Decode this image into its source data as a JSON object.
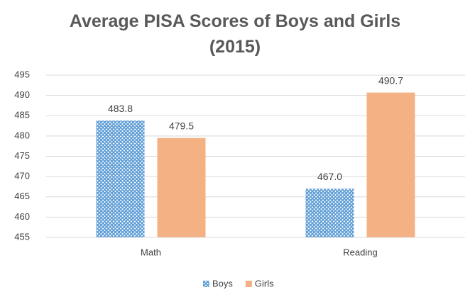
{
  "chart_data": {
    "type": "bar",
    "title": "Average PISA Scores of Boys and Girls (2015)",
    "categories": [
      "Math",
      "Reading"
    ],
    "series": [
      {
        "name": "Boys",
        "color": "#5b9bd5",
        "values": [
          483.8,
          467.0
        ],
        "value_labels": [
          "483.8",
          "467.0"
        ]
      },
      {
        "name": "Girls",
        "color": "#f4b183",
        "values": [
          479.5,
          490.7
        ],
        "value_labels": [
          "479.5",
          "490.7"
        ]
      }
    ],
    "ylim": [
      455,
      495
    ],
    "yticks": [
      455,
      460,
      465,
      470,
      475,
      480,
      485,
      490,
      495
    ],
    "grid": true,
    "legend": "bottom"
  }
}
